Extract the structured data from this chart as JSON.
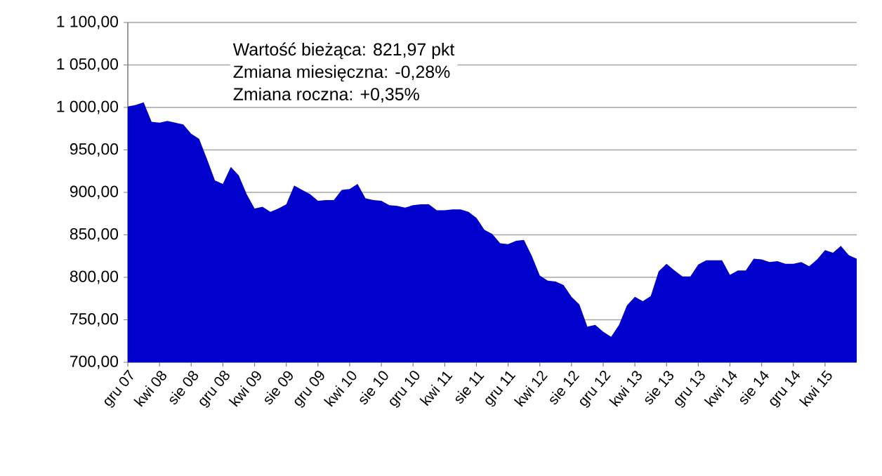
{
  "chart_data": {
    "type": "area",
    "color": "#0000cc",
    "categories": [
      "gru 07",
      null,
      null,
      null,
      "kwi 08",
      null,
      null,
      null,
      "sie 08",
      null,
      null,
      null,
      "gru 08",
      null,
      null,
      null,
      "kwi 09",
      null,
      null,
      null,
      "sie 09",
      null,
      null,
      null,
      "gru 09",
      null,
      null,
      null,
      "kwi 10",
      null,
      null,
      null,
      "sie 10",
      null,
      null,
      null,
      "gru 10",
      null,
      null,
      null,
      "kwi 11",
      null,
      null,
      null,
      "sie 11",
      null,
      null,
      null,
      "gru 11",
      null,
      null,
      null,
      "kwi 12",
      null,
      null,
      null,
      "sie 12",
      null,
      null,
      null,
      "gru 12",
      null,
      null,
      null,
      "kwi 13",
      null,
      null,
      null,
      "sie 13",
      null,
      null,
      null,
      "gru 13",
      null,
      null,
      null,
      "kwi 14",
      null,
      null,
      null,
      "sie 14",
      null,
      null,
      null,
      "gru 14",
      null,
      null,
      null,
      "kwi 15",
      null,
      null,
      null,
      null
    ],
    "values": [
      1001,
      1003,
      1006,
      983,
      982,
      984,
      982,
      980,
      969,
      963,
      939,
      914,
      910,
      930,
      920,
      898,
      881,
      883,
      877,
      881,
      886,
      908,
      903,
      898,
      890,
      891,
      891,
      903,
      904,
      910,
      893,
      891,
      890,
      885,
      884,
      882,
      885,
      886,
      886,
      879,
      879,
      880,
      880,
      877,
      870,
      856,
      851,
      840,
      839,
      843,
      844,
      825,
      802,
      796,
      795,
      791,
      777,
      768,
      742,
      744,
      736,
      730,
      744,
      767,
      777,
      772,
      778,
      807,
      816,
      808,
      801,
      801,
      815,
      820,
      820,
      820,
      803,
      808,
      808,
      822,
      821,
      818,
      819,
      816,
      816,
      818,
      813,
      821,
      832,
      829,
      837,
      826,
      822
    ],
    "ylim": [
      700,
      1100
    ],
    "yticks": [
      {
        "value": 700,
        "label": "700,00"
      },
      {
        "value": 750,
        "label": "750,00"
      },
      {
        "value": 800,
        "label": "800,00"
      },
      {
        "value": 850,
        "label": "850,00"
      },
      {
        "value": 900,
        "label": "900,00"
      },
      {
        "value": 950,
        "label": "950,00"
      },
      {
        "value": 1000,
        "label": "1 000,00"
      },
      {
        "value": 1050,
        "label": "1 050,00"
      },
      {
        "value": 1100,
        "label": "1 100,00"
      }
    ],
    "grid": "y",
    "annotations": [
      "Wartość bieżąca: 821,97 pkt",
      "Zmiana miesięczna: -0,28%",
      "Zmiana roczna: +0,35%"
    ]
  }
}
